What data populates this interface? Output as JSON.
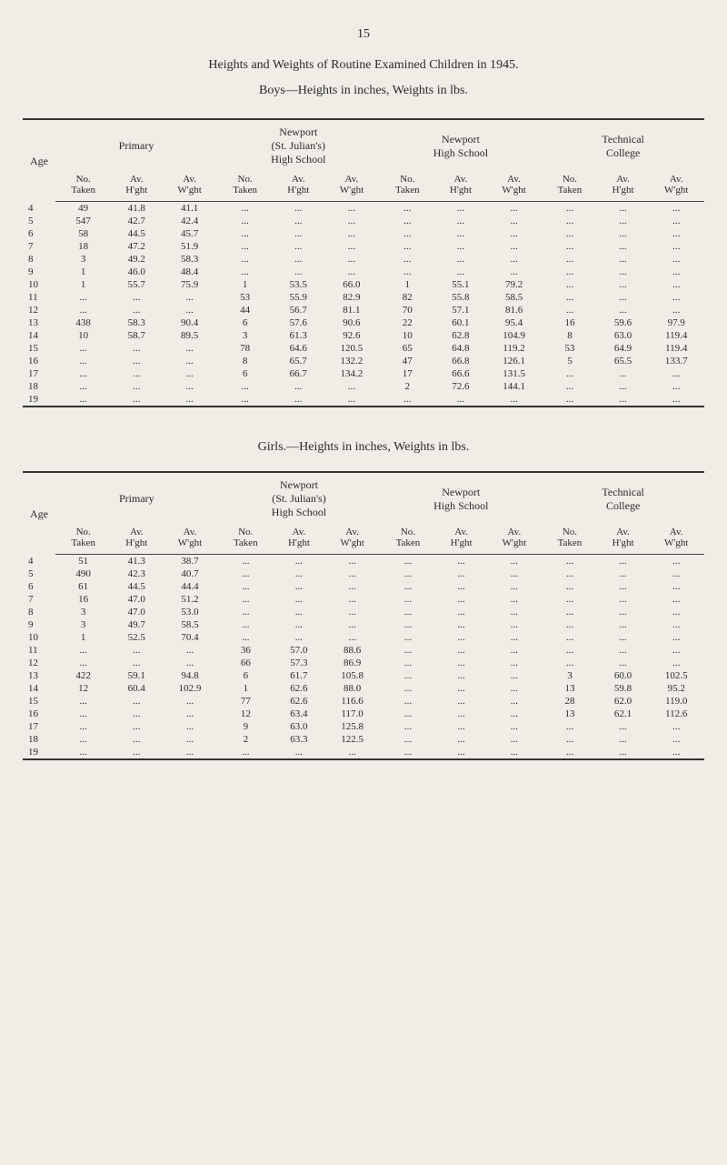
{
  "pageNumber": "15",
  "titleMain": "Heights and Weights of Routine Examined Children in 1945.",
  "boysCaption": "Boys—Heights in inches, Weights in lbs.",
  "girlsCaption": "Girls.—Heights in inches, Weights in lbs.",
  "ageHeader": "Age",
  "groups": [
    {
      "label": "Primary",
      "span": 3
    },
    {
      "label": "Newport\n(St. Julian's)\nHigh School",
      "span": 3
    },
    {
      "label": "Newport\nHigh School",
      "span": 3
    },
    {
      "label": "Technical\nCollege",
      "span": 3
    }
  ],
  "subHeadersTop": [
    "No.",
    "Av.",
    "Av."
  ],
  "subHeadersBot": [
    "Taken",
    "H'ght",
    "W'ght"
  ],
  "boysRows": [
    [
      "4",
      "49",
      "41.8",
      "41.1",
      "...",
      "...",
      "...",
      "...",
      "...",
      "...",
      "...",
      "...",
      "..."
    ],
    [
      "5",
      "547",
      "42.7",
      "42.4",
      "...",
      "...",
      "...",
      "...",
      "...",
      "...",
      "...",
      "...",
      "..."
    ],
    [
      "6",
      "58",
      "44.5",
      "45.7",
      "...",
      "...",
      "...",
      "...",
      "...",
      "...",
      "...",
      "...",
      "..."
    ],
    [
      "7",
      "18",
      "47.2",
      "51.9",
      "...",
      "...",
      "...",
      "...",
      "...",
      "...",
      "...",
      "...",
      "..."
    ],
    [
      "8",
      "3",
      "49.2",
      "58.3",
      "...",
      "...",
      "...",
      "...",
      "...",
      "...",
      "...",
      "...",
      "..."
    ],
    [
      "9",
      "1",
      "46.0",
      "48.4",
      "...",
      "...",
      "...",
      "...",
      "...",
      "...",
      "...",
      "...",
      "..."
    ],
    [
      "10",
      "1",
      "55.7",
      "75.9",
      "1",
      "53.5",
      "66.0",
      "1",
      "55.1",
      "79.2",
      "...",
      "...",
      "..."
    ],
    [
      "11",
      "...",
      "...",
      "...",
      "53",
      "55.9",
      "82.9",
      "82",
      "55.8",
      "58.5",
      "...",
      "...",
      "..."
    ],
    [
      "12",
      "...",
      "...",
      "...",
      "44",
      "56.7",
      "81.1",
      "70",
      "57.1",
      "81.6",
      "...",
      "...",
      "..."
    ],
    [
      "13",
      "438",
      "58.3",
      "90.4",
      "6",
      "57.6",
      "90.6",
      "22",
      "60.1",
      "95.4",
      "16",
      "59.6",
      "97.9"
    ],
    [
      "14",
      "10",
      "58.7",
      "89.5",
      "3",
      "61.3",
      "92.6",
      "10",
      "62.8",
      "104.9",
      "8",
      "63.0",
      "119.4"
    ],
    [
      "15",
      "...",
      "...",
      "...",
      "78",
      "64.6",
      "120.5",
      "65",
      "64.8",
      "119.2",
      "53",
      "64.9",
      "119.4"
    ],
    [
      "16",
      "...",
      "...",
      "...",
      "8",
      "65.7",
      "132.2",
      "47",
      "66.8",
      "126.1",
      "5",
      "65.5",
      "133.7"
    ],
    [
      "17",
      "...",
      "...",
      "...",
      "6",
      "66.7",
      "134.2",
      "17",
      "66.6",
      "131.5",
      "...",
      "...",
      "..."
    ],
    [
      "18",
      "...",
      "...",
      "...",
      "...",
      "...",
      "...",
      "2",
      "72.6",
      "144.1",
      "...",
      "...",
      "..."
    ],
    [
      "19",
      "...",
      "...",
      "...",
      "...",
      "...",
      "...",
      "...",
      "...",
      "...",
      "...",
      "...",
      "..."
    ]
  ],
  "girlsRows": [
    [
      "4",
      "51",
      "41.3",
      "38.7",
      "...",
      "...",
      "...",
      "...",
      "...",
      "...",
      "...",
      "...",
      "..."
    ],
    [
      "5",
      "490",
      "42.3",
      "40.7",
      "...",
      "...",
      "...",
      "...",
      "...",
      "...",
      "...",
      "...",
      "..."
    ],
    [
      "6",
      "61",
      "44.5",
      "44.4",
      "...",
      "...",
      "...",
      "...",
      "...",
      "...",
      "...",
      "...",
      "..."
    ],
    [
      "7",
      "16",
      "47.0",
      "51.2",
      "...",
      "...",
      "...",
      "...",
      "...",
      "...",
      "...",
      "...",
      "..."
    ],
    [
      "8",
      "3",
      "47.0",
      "53.0",
      "...",
      "...",
      "...",
      "...",
      "...",
      "...",
      "...",
      "...",
      "..."
    ],
    [
      "9",
      "3",
      "49.7",
      "58.5",
      "...",
      "...",
      "...",
      "...",
      "...",
      "...",
      "...",
      "...",
      "..."
    ],
    [
      "10",
      "1",
      "52.5",
      "70.4",
      "...",
      "...",
      "...",
      "...",
      "...",
      "...",
      "...",
      "...",
      "..."
    ],
    [
      "11",
      "...",
      "...",
      "...",
      "36",
      "57.0",
      "88.6",
      "...",
      "...",
      "...",
      "...",
      "...",
      "..."
    ],
    [
      "12",
      "...",
      "...",
      "...",
      "66",
      "57.3",
      "86.9",
      "...",
      "...",
      "...",
      "...",
      "...",
      "..."
    ],
    [
      "13",
      "422",
      "59.1",
      "94.8",
      "6",
      "61.7",
      "105.8",
      "...",
      "...",
      "...",
      "3",
      "60.0",
      "102.5"
    ],
    [
      "14",
      "12",
      "60.4",
      "102.9",
      "1",
      "62.6",
      "88.0",
      "...",
      "...",
      "...",
      "13",
      "59.8",
      "95.2"
    ],
    [
      "15",
      "...",
      "...",
      "...",
      "77",
      "62.6",
      "116.6",
      "...",
      "...",
      "...",
      "28",
      "62.0",
      "119.0"
    ],
    [
      "16",
      "...",
      "...",
      "...",
      "12",
      "63.4",
      "117.0",
      "...",
      "...",
      "...",
      "13",
      "62.1",
      "112.6"
    ],
    [
      "17",
      "...",
      "...",
      "...",
      "9",
      "63.0",
      "125.8",
      "...",
      "...",
      "...",
      "...",
      "...",
      "..."
    ],
    [
      "18",
      "...",
      "...",
      "...",
      "2",
      "63.3",
      "122.5",
      "...",
      "...",
      "...",
      "...",
      "...",
      "..."
    ],
    [
      "19",
      "...",
      "...",
      "...",
      "...",
      "...",
      "...",
      "...",
      "...",
      "...",
      "...",
      "...",
      "..."
    ]
  ]
}
